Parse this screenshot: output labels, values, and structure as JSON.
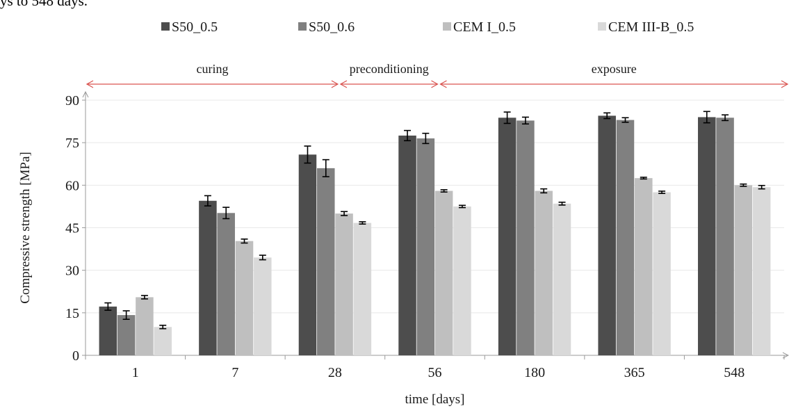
{
  "page": {
    "top_text": "ys to 548 days."
  },
  "chart_data": {
    "type": "bar",
    "title": "",
    "xlabel": "time [days]",
    "ylabel": "Compressive strength [MPa]",
    "ylim": [
      0,
      90
    ],
    "yticks": [
      0,
      15,
      30,
      45,
      60,
      75,
      90
    ],
    "grid": "horizontal",
    "legend": "top",
    "categories": [
      "1",
      "7",
      "28",
      "56",
      "180",
      "365",
      "548"
    ],
    "series": [
      {
        "name": "S50_0.5",
        "color": "#4d4d4d",
        "values": [
          17.2,
          54.5,
          70.8,
          77.5,
          83.8,
          84.5,
          84.0
        ],
        "errors": [
          1.3,
          1.8,
          3.0,
          1.8,
          2.0,
          1.0,
          2.0
        ]
      },
      {
        "name": "S50_0.6",
        "color": "#808080",
        "values": [
          14.2,
          50.2,
          66.0,
          76.5,
          82.8,
          83.0,
          83.8
        ],
        "errors": [
          1.5,
          2.0,
          3.0,
          1.8,
          1.2,
          0.8,
          1.0
        ]
      },
      {
        "name": "CEM I_0.5",
        "color": "#bfbfbf",
        "values": [
          20.5,
          40.3,
          50.0,
          58.0,
          58.0,
          62.5,
          60.0
        ],
        "errors": [
          0.6,
          0.7,
          0.7,
          0.4,
          0.7,
          0.3,
          0.4
        ]
      },
      {
        "name": "CEM III-B_0.5",
        "color": "#d9d9d9",
        "values": [
          10.0,
          34.5,
          46.7,
          52.5,
          53.5,
          57.5,
          59.3
        ],
        "errors": [
          0.6,
          0.8,
          0.4,
          0.4,
          0.5,
          0.4,
          0.6
        ]
      }
    ],
    "phases": [
      {
        "label": "curing",
        "from": "1",
        "to": "28"
      },
      {
        "label": "preconditioning",
        "from": "28",
        "to": "56"
      },
      {
        "label": "exposure",
        "from": "56",
        "to": "548"
      }
    ]
  }
}
